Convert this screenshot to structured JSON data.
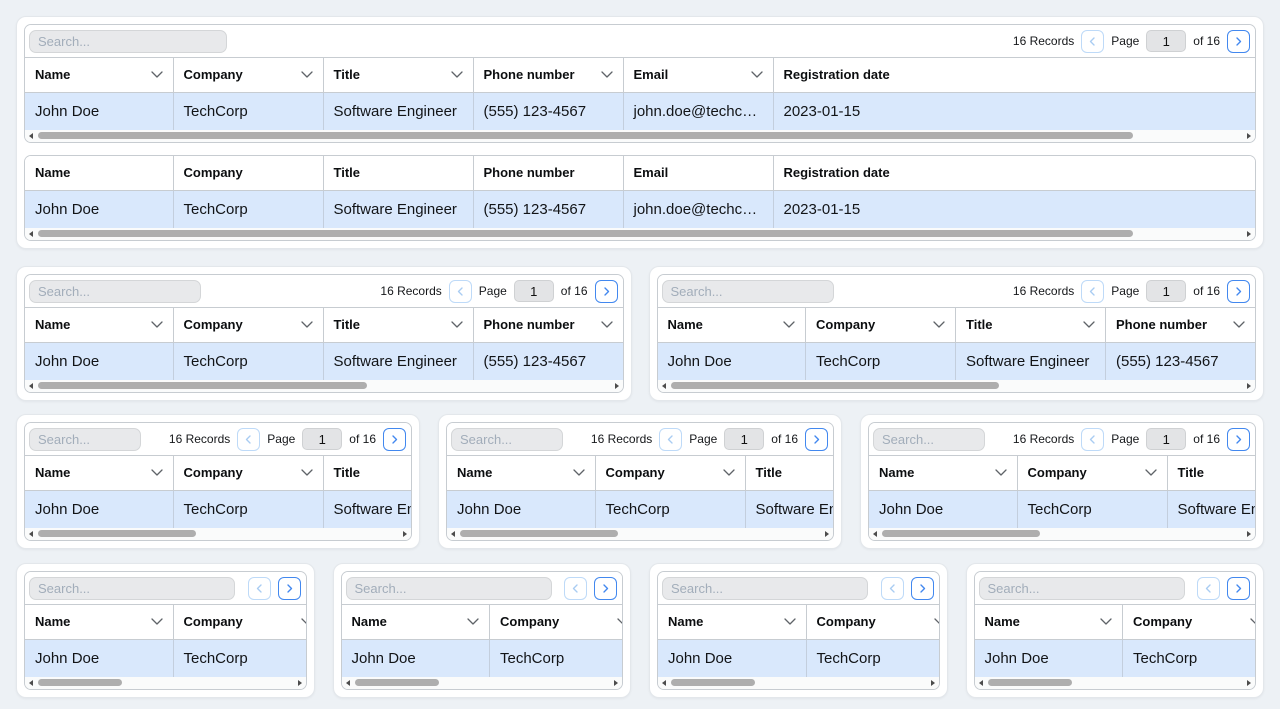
{
  "toolbar": {
    "search_placeholder": "Search...",
    "records_label": "16 Records",
    "page_label": "Page",
    "page_value": "1",
    "of_label": "of 16"
  },
  "columns": [
    {
      "label": "Name"
    },
    {
      "label": "Company"
    },
    {
      "label": "Title"
    },
    {
      "label": "Phone number"
    },
    {
      "label": "Email"
    },
    {
      "label": "Registration date"
    }
  ],
  "row": {
    "cells": [
      "John Doe",
      "TechCorp",
      "Software Engineer",
      "(555) 123-4567",
      "john.doe@techcorp.com",
      "2023-01-15"
    ]
  },
  "colors": {
    "row_highlight": "#d9e8fc",
    "accent_blue": "#4288ef",
    "disabled_blue": "#bedaf8",
    "page_background": "#edf1f5"
  },
  "icons": {
    "header_sort": "chevron-down",
    "prev_page": "chevron-left",
    "next_page": "chevron-right"
  }
}
